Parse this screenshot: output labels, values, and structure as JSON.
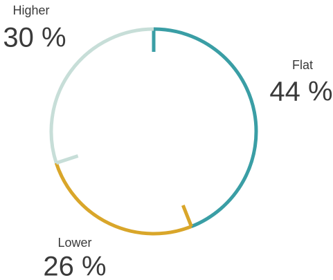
{
  "chart_data": {
    "type": "pie",
    "donut": true,
    "categories": [
      "Flat",
      "Lower",
      "Higher"
    ],
    "values": [
      44,
      26,
      30
    ],
    "value_labels": [
      "44 %",
      "26 %",
      "30 %"
    ],
    "colors": [
      "#3a9ea5",
      "#d9a62a",
      "#c7ded8"
    ]
  }
}
